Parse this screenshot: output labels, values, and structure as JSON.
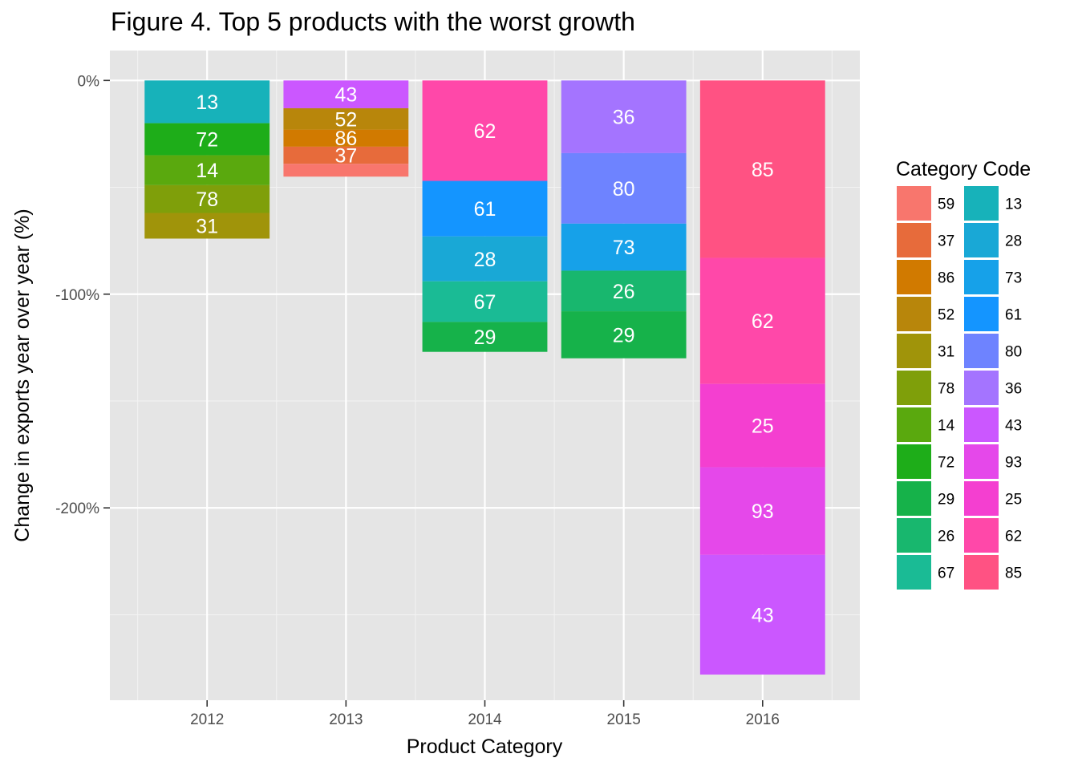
{
  "chart_data": {
    "type": "bar",
    "stacked": true,
    "title": "Figure 4. Top 5 products with the worst growth",
    "xlabel": "Product Category",
    "ylabel": "Change in exports year over year (%)",
    "categories": [
      "2012",
      "2013",
      "2014",
      "2015",
      "2016"
    ],
    "ylim": [
      -290,
      14
    ],
    "y_ticks": [
      {
        "value": 0,
        "label": "0%"
      },
      {
        "value": -100,
        "label": "-100%"
      },
      {
        "value": -200,
        "label": "-200%"
      }
    ],
    "grid": true,
    "legend_position": "right",
    "legend": {
      "title": "Category Code",
      "columns": [
        [
          {
            "code": "59",
            "color": "#F8766D"
          },
          {
            "code": "37",
            "color": "#E76B3B"
          },
          {
            "code": "86",
            "color": "#D17A00"
          },
          {
            "code": "52",
            "color": "#B8860B"
          },
          {
            "code": "31",
            "color": "#A0940A"
          },
          {
            "code": "78",
            "color": "#7F9F0A"
          },
          {
            "code": "14",
            "color": "#5AA90E"
          },
          {
            "code": "72",
            "color": "#1EAD19"
          },
          {
            "code": "29",
            "color": "#16B24A"
          },
          {
            "code": "26",
            "color": "#18B76E"
          },
          {
            "code": "67",
            "color": "#1ABB95"
          }
        ],
        [
          {
            "code": "13",
            "color": "#17B2BA"
          },
          {
            "code": "28",
            "color": "#19A8D6"
          },
          {
            "code": "73",
            "color": "#16A1E9"
          },
          {
            "code": "61",
            "color": "#1495FF"
          },
          {
            "code": "80",
            "color": "#6E83FF"
          },
          {
            "code": "36",
            "color": "#A474FF"
          },
          {
            "code": "43",
            "color": "#CB57FF"
          },
          {
            "code": "93",
            "color": "#E548EA"
          },
          {
            "code": "25",
            "color": "#F43FD0"
          },
          {
            "code": "62",
            "color": "#FF48A9"
          },
          {
            "code": "85",
            "color": "#FF5283"
          }
        ]
      ]
    },
    "stacks": [
      {
        "category": "2012",
        "segments": [
          {
            "code": "13",
            "value": -20,
            "color": "#17B2BA",
            "label": "13"
          },
          {
            "code": "72",
            "value": -15,
            "color": "#1EAD19",
            "label": "72"
          },
          {
            "code": "14",
            "value": -14,
            "color": "#5AA90E",
            "label": "14"
          },
          {
            "code": "78",
            "value": -13,
            "color": "#7F9F0A",
            "label": "78"
          },
          {
            "code": "31",
            "value": -12,
            "color": "#A0940A",
            "label": "31"
          }
        ]
      },
      {
        "category": "2013",
        "segments": [
          {
            "code": "43",
            "value": -13,
            "color": "#CB57FF",
            "label": "43"
          },
          {
            "code": "52",
            "value": -10,
            "color": "#B8860B",
            "label": "52"
          },
          {
            "code": "86",
            "value": -8,
            "color": "#D17A00",
            "label": "86"
          },
          {
            "code": "37",
            "value": -8,
            "color": "#E76B3B",
            "label": "37"
          },
          {
            "code": "59",
            "value": -6,
            "color": "#F8766D",
            "label": ""
          }
        ]
      },
      {
        "category": "2014",
        "segments": [
          {
            "code": "62",
            "value": -47,
            "color": "#FF48A9",
            "label": "62"
          },
          {
            "code": "61",
            "value": -26,
            "color": "#1495FF",
            "label": "61"
          },
          {
            "code": "28",
            "value": -21,
            "color": "#19A8D6",
            "label": "28"
          },
          {
            "code": "67",
            "value": -19,
            "color": "#1ABB95",
            "label": "67"
          },
          {
            "code": "29",
            "value": -14,
            "color": "#16B24A",
            "label": "29"
          }
        ]
      },
      {
        "category": "2015",
        "segments": [
          {
            "code": "36",
            "value": -34,
            "color": "#A474FF",
            "label": "36"
          },
          {
            "code": "80",
            "value": -33,
            "color": "#6E83FF",
            "label": "80"
          },
          {
            "code": "73",
            "value": -22,
            "color": "#16A1E9",
            "label": "73"
          },
          {
            "code": "26",
            "value": -19,
            "color": "#18B76E",
            "label": "26"
          },
          {
            "code": "29",
            "value": -22,
            "color": "#16B24A",
            "label": "29"
          }
        ]
      },
      {
        "category": "2016",
        "segments": [
          {
            "code": "85",
            "value": -83,
            "color": "#FF5283",
            "label": "85"
          },
          {
            "code": "62",
            "value": -59,
            "color": "#FF48A9",
            "label": "62"
          },
          {
            "code": "25",
            "value": -39,
            "color": "#F43FD0",
            "label": "25"
          },
          {
            "code": "93",
            "value": -41,
            "color": "#E548EA",
            "label": "93"
          },
          {
            "code": "43",
            "value": -56,
            "color": "#CB57FF",
            "label": "43"
          }
        ]
      }
    ]
  }
}
